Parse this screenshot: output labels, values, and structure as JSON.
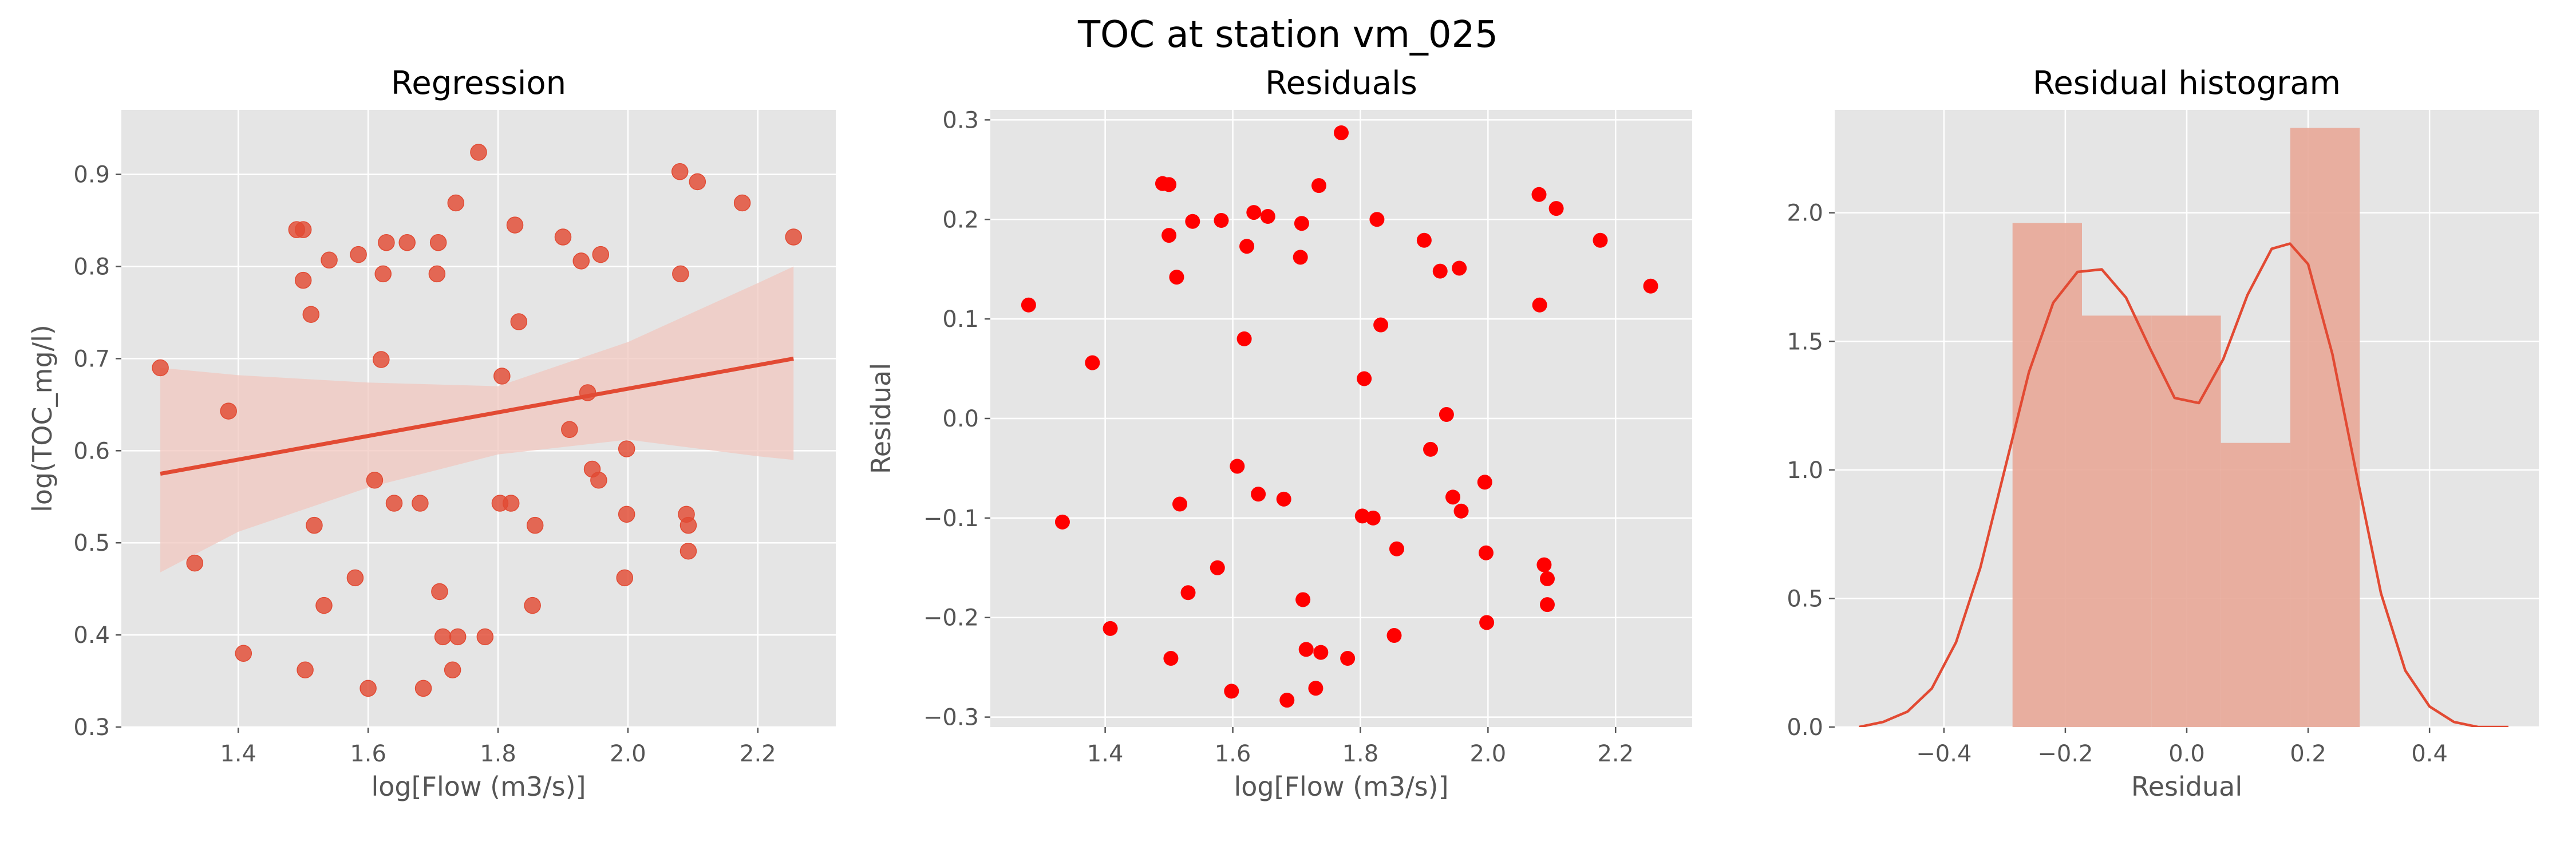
{
  "figure": {
    "suptitle": "TOC at station vm_025"
  },
  "chart_data": [
    {
      "type": "scatter",
      "title": "Regression",
      "xlabel": "log[Flow (m3/s)]",
      "ylabel": "log(TOC_mg/l)",
      "xlim": [
        1.22,
        2.32
      ],
      "ylim": [
        0.3,
        0.97
      ],
      "xticks": [
        "1.4",
        "1.6",
        "1.8",
        "2.0",
        "2.2"
      ],
      "yticks": [
        "0.3",
        "0.4",
        "0.5",
        "0.6",
        "0.7",
        "0.8",
        "0.9"
      ],
      "grid": true,
      "regression": {
        "x": [
          1.28,
          2.255
        ],
        "y": [
          0.575,
          0.7
        ]
      },
      "confidence_band": {
        "x": [
          1.28,
          1.4,
          1.6,
          1.8,
          2.0,
          2.2,
          2.255
        ],
        "upper": [
          0.69,
          0.682,
          0.674,
          0.67,
          0.718,
          0.782,
          0.8
        ],
        "lower": [
          0.468,
          0.512,
          0.56,
          0.596,
          0.612,
          0.594,
          0.59
        ]
      },
      "points": [
        [
          1.28,
          0.69
        ],
        [
          1.333,
          0.478
        ],
        [
          1.385,
          0.643
        ],
        [
          1.408,
          0.38
        ],
        [
          1.49,
          0.84
        ],
        [
          1.5,
          0.84
        ],
        [
          1.5,
          0.785
        ],
        [
          1.503,
          0.362
        ],
        [
          1.512,
          0.748
        ],
        [
          1.517,
          0.519
        ],
        [
          1.532,
          0.432
        ],
        [
          1.54,
          0.807
        ],
        [
          1.58,
          0.462
        ],
        [
          1.585,
          0.813
        ],
        [
          1.6,
          0.342
        ],
        [
          1.61,
          0.568
        ],
        [
          1.62,
          0.699
        ],
        [
          1.623,
          0.792
        ],
        [
          1.628,
          0.826
        ],
        [
          1.64,
          0.543
        ],
        [
          1.66,
          0.826
        ],
        [
          1.68,
          0.543
        ],
        [
          1.685,
          0.342
        ],
        [
          1.706,
          0.792
        ],
        [
          1.708,
          0.826
        ],
        [
          1.71,
          0.447
        ],
        [
          1.715,
          0.398
        ],
        [
          1.73,
          0.362
        ],
        [
          1.735,
          0.869
        ],
        [
          1.738,
          0.398
        ],
        [
          1.77,
          0.924
        ],
        [
          1.78,
          0.398
        ],
        [
          1.803,
          0.543
        ],
        [
          1.806,
          0.681
        ],
        [
          1.82,
          0.543
        ],
        [
          1.826,
          0.845
        ],
        [
          1.832,
          0.74
        ],
        [
          1.853,
          0.432
        ],
        [
          1.857,
          0.519
        ],
        [
          1.9,
          0.832
        ],
        [
          1.91,
          0.623
        ],
        [
          1.928,
          0.806
        ],
        [
          1.938,
          0.663
        ],
        [
          1.945,
          0.58
        ],
        [
          1.955,
          0.568
        ],
        [
          1.958,
          0.813
        ],
        [
          1.995,
          0.462
        ],
        [
          1.998,
          0.602
        ],
        [
          1.998,
          0.531
        ],
        [
          2.08,
          0.903
        ],
        [
          2.081,
          0.792
        ],
        [
          2.09,
          0.531
        ],
        [
          2.093,
          0.519
        ],
        [
          2.093,
          0.491
        ],
        [
          2.107,
          0.892
        ],
        [
          2.176,
          0.869
        ],
        [
          2.255,
          0.832
        ]
      ]
    },
    {
      "type": "scatter",
      "title": "Residuals",
      "xlabel": "log[Flow (m3/s)]",
      "ylabel": "Residual",
      "xlim": [
        1.22,
        2.32
      ],
      "ylim": [
        -0.31,
        0.31
      ],
      "xticks": [
        "1.4",
        "1.6",
        "1.8",
        "2.0",
        "2.2"
      ],
      "yticks": [
        "−0.3",
        "−0.2",
        "−0.1",
        "0.0",
        "0.1",
        "0.2",
        "0.3"
      ],
      "grid": true,
      "points": [
        [
          1.28,
          0.114
        ],
        [
          1.333,
          -0.104
        ],
        [
          1.38,
          0.056
        ],
        [
          1.408,
          -0.211
        ],
        [
          1.49,
          0.236
        ],
        [
          1.5,
          0.235
        ],
        [
          1.5,
          0.184
        ],
        [
          1.503,
          -0.241
        ],
        [
          1.512,
          0.142
        ],
        [
          1.517,
          -0.086
        ],
        [
          1.53,
          -0.175
        ],
        [
          1.537,
          0.198
        ],
        [
          1.576,
          -0.15
        ],
        [
          1.582,
          0.199
        ],
        [
          1.598,
          -0.274
        ],
        [
          1.607,
          -0.048
        ],
        [
          1.618,
          0.08
        ],
        [
          1.622,
          0.173
        ],
        [
          1.633,
          0.207
        ],
        [
          1.64,
          -0.076
        ],
        [
          1.655,
          0.203
        ],
        [
          1.68,
          -0.081
        ],
        [
          1.685,
          -0.283
        ],
        [
          1.706,
          0.162
        ],
        [
          1.708,
          0.196
        ],
        [
          1.71,
          -0.182
        ],
        [
          1.715,
          -0.232
        ],
        [
          1.73,
          -0.271
        ],
        [
          1.735,
          0.234
        ],
        [
          1.738,
          -0.235
        ],
        [
          1.77,
          0.287
        ],
        [
          1.78,
          -0.241
        ],
        [
          1.803,
          -0.098
        ],
        [
          1.806,
          0.04
        ],
        [
          1.82,
          -0.1
        ],
        [
          1.826,
          0.2
        ],
        [
          1.832,
          0.094
        ],
        [
          1.853,
          -0.218
        ],
        [
          1.857,
          -0.131
        ],
        [
          1.9,
          0.179
        ],
        [
          1.91,
          -0.031
        ],
        [
          1.925,
          0.148
        ],
        [
          1.935,
          0.004
        ],
        [
          1.945,
          -0.079
        ],
        [
          1.955,
          0.151
        ],
        [
          1.958,
          -0.093
        ],
        [
          1.995,
          -0.064
        ],
        [
          1.997,
          -0.135
        ],
        [
          1.998,
          -0.205
        ],
        [
          2.08,
          0.225
        ],
        [
          2.081,
          0.114
        ],
        [
          2.088,
          -0.147
        ],
        [
          2.093,
          -0.161
        ],
        [
          2.093,
          -0.187
        ],
        [
          2.107,
          0.211
        ],
        [
          2.176,
          0.179
        ],
        [
          2.255,
          0.133
        ]
      ]
    },
    {
      "type": "histogram",
      "title": "Residual histogram",
      "xlabel": "Residual",
      "ylabel": "",
      "xlim": [
        -0.58,
        0.58
      ],
      "ylim": [
        0,
        2.4
      ],
      "xticks": [
        "−0.4",
        "−0.2",
        "0.0",
        "0.2",
        "0.4"
      ],
      "yticks": [
        "0.0",
        "0.5",
        "1.0",
        "1.5",
        "2.0"
      ],
      "grid": true,
      "bins": [
        {
          "x0": -0.287,
          "x1": -0.1726,
          "density": 1.96
        },
        {
          "x0": -0.1726,
          "x1": -0.0582,
          "density": 1.6
        },
        {
          "x0": -0.0582,
          "x1": 0.0562,
          "density": 1.6
        },
        {
          "x0": 0.0562,
          "x1": 0.1706,
          "density": 1.105
        },
        {
          "x0": 0.1706,
          "x1": 0.285,
          "density": 2.33
        }
      ],
      "kde": {
        "x": [
          -0.54,
          -0.5,
          -0.46,
          -0.42,
          -0.38,
          -0.34,
          -0.3,
          -0.26,
          -0.22,
          -0.18,
          -0.14,
          -0.1,
          -0.06,
          -0.02,
          0.02,
          0.06,
          0.1,
          0.14,
          0.17,
          0.2,
          0.24,
          0.28,
          0.32,
          0.36,
          0.4,
          0.44,
          0.48,
          0.53
        ],
        "y": [
          0.0,
          0.02,
          0.06,
          0.15,
          0.33,
          0.62,
          1.0,
          1.38,
          1.65,
          1.77,
          1.78,
          1.67,
          1.47,
          1.28,
          1.26,
          1.43,
          1.68,
          1.86,
          1.88,
          1.8,
          1.45,
          0.98,
          0.52,
          0.22,
          0.08,
          0.02,
          0.0,
          0.0
        ]
      }
    }
  ],
  "colors": {
    "panel_bg": "#e5e5e5",
    "grid": "#ffffff",
    "regression_points": "#e24a33",
    "regression_line": "#e24a33",
    "band": "#f0c7bf",
    "residual_points": "#ff0000",
    "hist_bar": "#e8a797",
    "kde_line": "#e24a33",
    "tick_text": "#555555",
    "title_text": "#000000"
  }
}
